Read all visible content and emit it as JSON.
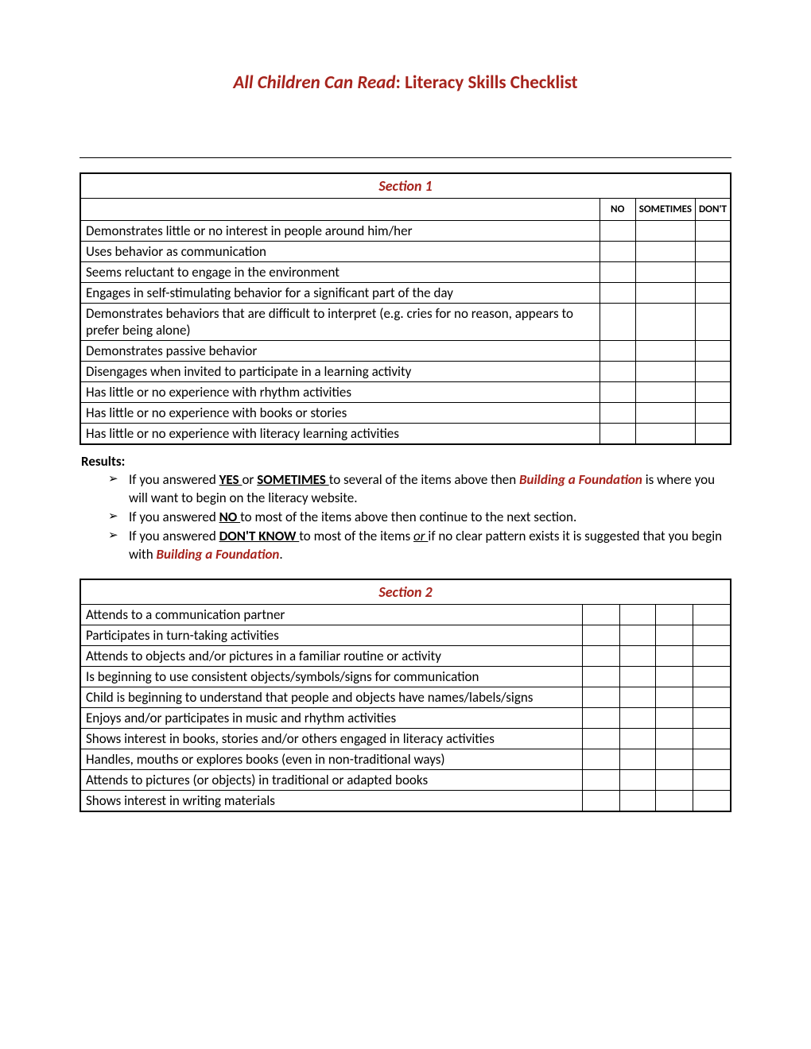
{
  "title": {
    "italic_part": "All Children Can Read",
    "rest": ": Literacy Skills Checklist",
    "color": "#a6231c",
    "fontsize_pt": 17
  },
  "section1": {
    "header": "Section 1",
    "header_color": "#a6231c",
    "columns": {
      "no": "NO",
      "sometimes": "SOMETIMES",
      "dont": "DON'T"
    },
    "items": [
      "Demonstrates little or no interest in people around him/her",
      "Uses behavior as communication",
      "Seems reluctant to engage in the environment",
      "Engages in self-stimulating behavior for a significant part of the day",
      "Demonstrates behaviors that are difficult to interpret (e.g.  cries for no reason, appears to prefer being alone)",
      "Demonstrates passive behavior",
      "Disengages when invited to participate in a learning activity",
      "Has little or no experience with rhythm activities",
      "Has little or no experience with books or stories",
      "Has little or no experience with literacy learning activities"
    ]
  },
  "results": {
    "label": "Results:",
    "bullet1": {
      "pre": "If you answered ",
      "yes": "YES ",
      "or1": "or ",
      "sometimes": "SOMETIMES ",
      "mid": "to several of the items above then ",
      "foundation": "Building a Foundation",
      "post": " is where you will want to begin on the literacy website."
    },
    "bullet2": {
      "pre": "If you answered ",
      "no": "NO ",
      "post": "to most of the items above then continue to the next section."
    },
    "bullet3": {
      "pre": "If you answered ",
      "dont": "DON'T KNOW ",
      "mid1": "to most of the items ",
      "or_u": "or ",
      "mid2": "if no clear pattern exists it is suggested that you begin with ",
      "foundation": "Building a Foundation",
      "post": "."
    }
  },
  "section2": {
    "header": "Section 2",
    "header_color": "#a6231c",
    "items": [
      "Attends to a communication partner",
      "Participates in turn-taking activities",
      "Attends to objects and/or pictures in a familiar routine or activity",
      "Is beginning to use consistent objects/symbols/signs for communication",
      "Child is beginning to understand that people and objects have names/labels/signs",
      "Enjoys and/or participates in music and rhythm activities",
      "Shows interest in books, stories and/or others engaged in literacy  activities",
      "Handles, mouths or explores books (even in non-traditional ways)",
      "Attends to pictures (or objects) in traditional or adapted books",
      "Shows interest in writing materials"
    ]
  },
  "style": {
    "border_color": "#000000",
    "background_color": "#ffffff",
    "body_fontsize_pt": 13
  }
}
